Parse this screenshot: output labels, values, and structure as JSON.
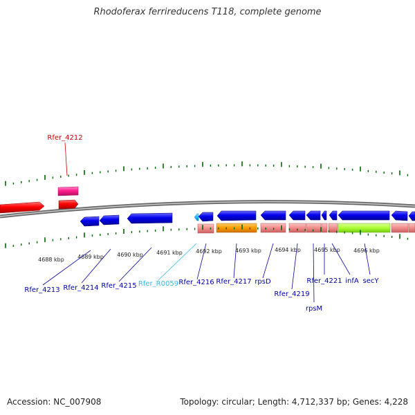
{
  "title": "Rhodoferax ferrireducens T118, complete genome",
  "footer": {
    "accession": "Accession: NC_007908",
    "stats": "Topology: circular; Length: 4,712,337 bp; Genes: 4,228"
  },
  "scale": {
    "unit": "kbp",
    "labels": [
      "4688 kbp",
      "4689 kbp",
      "4690 kbp",
      "4691 kbp",
      "4692 kbp",
      "4693 kbp",
      "4694 kbp",
      "4695 kbp",
      "4696 kbp"
    ]
  },
  "colors": {
    "gene_plus": "#ff0000",
    "gene_minus": "#0000ee",
    "rna": "#00bbff",
    "pseudo": "#ff3399",
    "cds_pink": "#f08c8c",
    "cds_orange": "#ff9900",
    "cds_green": "#aaff33",
    "backbone": "#777777",
    "tick": "#006600"
  },
  "gene_labels": [
    {
      "text": "Rfer_4212",
      "color": "#cc0000"
    },
    {
      "text": "Rfer_4213",
      "color": "#0000aa"
    },
    {
      "text": "Rfer_4214",
      "color": "#0000aa"
    },
    {
      "text": "Rfer_4215",
      "color": "#0000aa"
    },
    {
      "text": "Rfer_R0059",
      "color": "#33bbee"
    },
    {
      "text": "Rfer_4216",
      "color": "#0000aa"
    },
    {
      "text": "Rfer_4217",
      "color": "#0000aa"
    },
    {
      "text": "rpsD",
      "color": "#0000aa"
    },
    {
      "text": "Rfer_4219",
      "color": "#0000aa"
    },
    {
      "text": "rpsM",
      "color": "#0000aa"
    },
    {
      "text": "Rfer_4221",
      "color": "#0000aa"
    },
    {
      "text": "infA",
      "color": "#0000aa"
    },
    {
      "text": "secY",
      "color": "#0000aa"
    }
  ]
}
